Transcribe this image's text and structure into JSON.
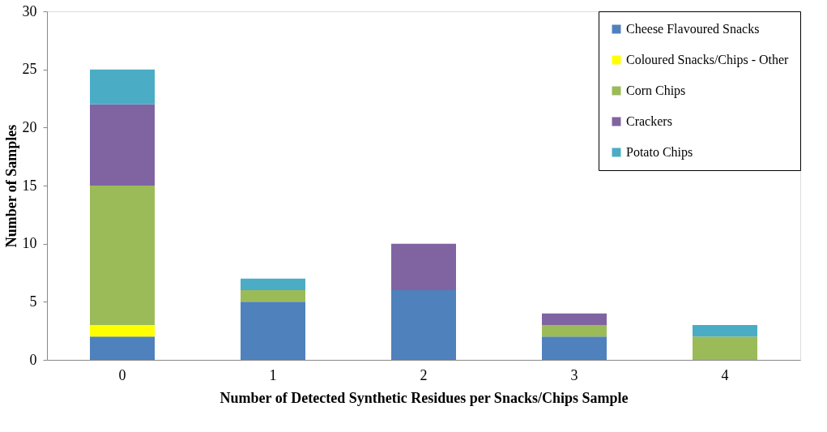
{
  "chart_data": {
    "type": "bar",
    "stacked": true,
    "xlabel": "Number of Detected Synthetic Residues per Snacks/Chips Sample",
    "ylabel": "Number of Samples",
    "categories": [
      "0",
      "1",
      "2",
      "3",
      "4"
    ],
    "series": [
      {
        "name": "Cheese Flavoured Snacks",
        "color": "#4f81bd",
        "values": [
          2,
          5,
          6,
          2,
          0
        ]
      },
      {
        "name": "Coloured Snacks/Chips - Other",
        "color": "#ffff00",
        "values": [
          1,
          0,
          0,
          0,
          0
        ]
      },
      {
        "name": "Corn Chips",
        "color": "#9bbb59",
        "values": [
          12,
          1,
          0,
          1,
          2
        ]
      },
      {
        "name": "Crackers",
        "color": "#8064a2",
        "values": [
          7,
          0,
          4,
          1,
          0
        ]
      },
      {
        "name": "Potato Chips",
        "color": "#4bacc6",
        "values": [
          3,
          1,
          0,
          0,
          1
        ]
      }
    ],
    "ylim": [
      0,
      30
    ],
    "yticks": [
      0,
      5,
      10,
      15,
      20,
      25,
      30
    ],
    "grid": false,
    "legend": "top right"
  }
}
